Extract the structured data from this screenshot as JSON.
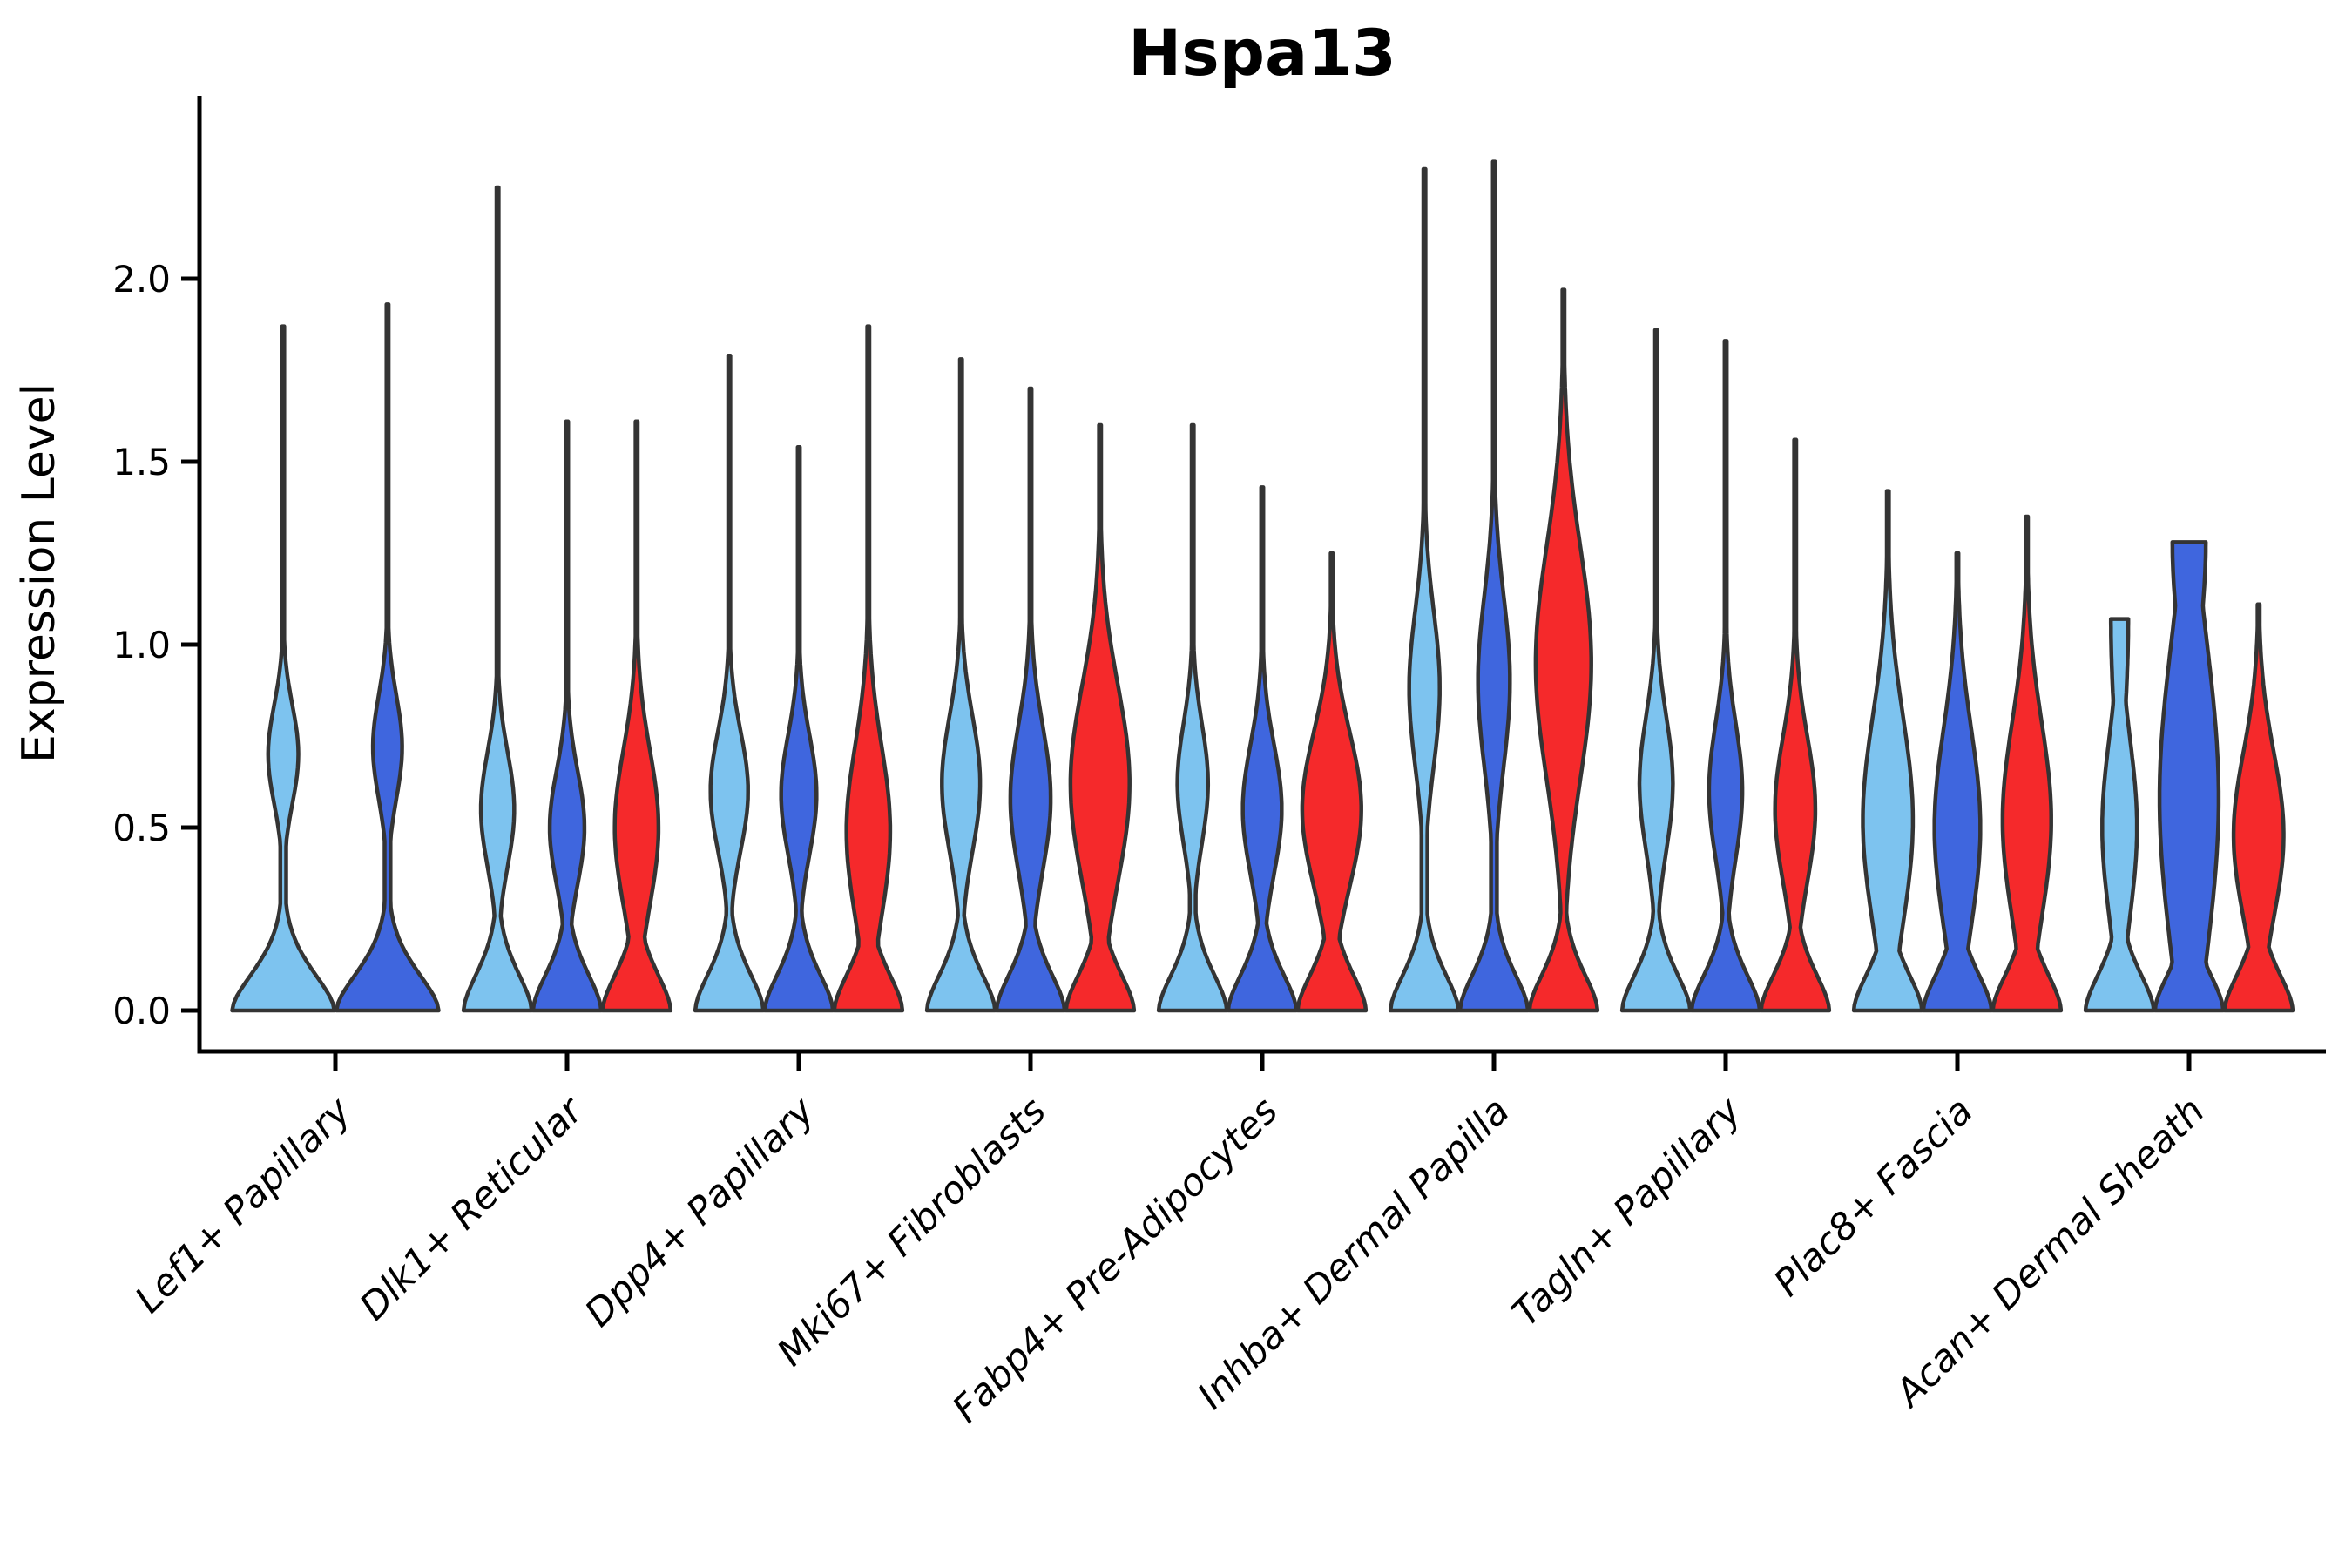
{
  "chart_data": {
    "type": "violin",
    "title": "Hspa13",
    "xlabel": "",
    "ylabel": "Expression Level",
    "yticks": [
      0.0,
      0.5,
      1.0,
      1.5,
      2.0
    ],
    "ylim": [
      -0.11,
      2.5
    ],
    "grid": false,
    "legend_position": "none",
    "colors": {
      "skyblue": "#7DC3EF",
      "royalblue": "#3F66DE",
      "red": "#F5292B"
    },
    "outline_color": "#343434",
    "axis_color": "#000000",
    "background_color": "#FFFFFF",
    "categories": [
      {
        "label": "Lef1+ Papillary",
        "violins": [
          {
            "color": "skyblue",
            "max": 1.87,
            "bulge_center": 0.7,
            "bulge_amp": 0.29,
            "bulge_sigma": 0.19,
            "top_width": 0
          },
          {
            "color": "royalblue",
            "max": 1.93,
            "bulge_center": 0.72,
            "bulge_amp": 0.28,
            "bulge_sigma": 0.2,
            "top_width": 0
          }
        ]
      },
      {
        "label": "Dlk1+ Reticular",
        "violins": [
          {
            "color": "skyblue",
            "max": 2.25,
            "bulge_center": 0.55,
            "bulge_amp": 0.48,
            "bulge_sigma": 0.22,
            "top_width": 0
          },
          {
            "color": "royalblue",
            "max": 1.61,
            "bulge_center": 0.5,
            "bulge_amp": 0.5,
            "bulge_sigma": 0.22,
            "top_width": 0
          },
          {
            "color": "red",
            "max": 1.61,
            "bulge_center": 0.5,
            "bulge_amp": 0.63,
            "bulge_sigma": 0.3,
            "top_width": 0
          }
        ]
      },
      {
        "label": "Dpp4+ Papillary",
        "violins": [
          {
            "color": "skyblue",
            "max": 1.79,
            "bulge_center": 0.6,
            "bulge_amp": 0.54,
            "bulge_sigma": 0.23,
            "top_width": 0
          },
          {
            "color": "royalblue",
            "max": 1.54,
            "bulge_center": 0.59,
            "bulge_amp": 0.51,
            "bulge_sigma": 0.23,
            "top_width": 0
          },
          {
            "color": "red",
            "max": 1.87,
            "bulge_center": 0.49,
            "bulge_amp": 0.63,
            "bulge_sigma": 0.33,
            "top_width": 0
          }
        ]
      },
      {
        "label": "Mki67+ Fibroblasts",
        "violins": [
          {
            "color": "skyblue",
            "max": 1.78,
            "bulge_center": 0.62,
            "bulge_amp": 0.55,
            "bulge_sigma": 0.26,
            "top_width": 0
          },
          {
            "color": "royalblue",
            "max": 1.7,
            "bulge_center": 0.58,
            "bulge_amp": 0.58,
            "bulge_sigma": 0.28,
            "top_width": 0
          },
          {
            "color": "red",
            "max": 1.6,
            "bulge_center": 0.62,
            "bulge_amp": 0.85,
            "bulge_sigma": 0.38,
            "top_width": 0
          }
        ]
      },
      {
        "label": "Fabp4+ Pre-Adipocytes",
        "violins": [
          {
            "color": "skyblue",
            "max": 1.6,
            "bulge_center": 0.62,
            "bulge_amp": 0.44,
            "bulge_sigma": 0.23,
            "top_width": 0
          },
          {
            "color": "royalblue",
            "max": 1.43,
            "bulge_center": 0.55,
            "bulge_amp": 0.56,
            "bulge_sigma": 0.25,
            "top_width": 0
          },
          {
            "color": "red",
            "max": 1.25,
            "bulge_center": 0.55,
            "bulge_amp": 0.85,
            "bulge_sigma": 0.3,
            "top_width": 0
          }
        ]
      },
      {
        "label": "Inhba+ Dermal Papilla",
        "violins": [
          {
            "color": "skyblue",
            "max": 2.3,
            "bulge_center": 0.88,
            "bulge_amp": 0.44,
            "bulge_sigma": 0.3,
            "top_width": 0
          },
          {
            "color": "royalblue",
            "max": 2.32,
            "bulge_center": 0.9,
            "bulge_amp": 0.46,
            "bulge_sigma": 0.33,
            "top_width": 0
          },
          {
            "color": "red",
            "max": 1.97,
            "bulge_center": 0.95,
            "bulge_amp": 0.8,
            "bulge_sigma": 0.45,
            "top_width": 0
          }
        ]
      },
      {
        "label": "Tagln+ Papillary",
        "violins": [
          {
            "color": "skyblue",
            "max": 1.86,
            "bulge_center": 0.62,
            "bulge_amp": 0.48,
            "bulge_sigma": 0.26,
            "top_width": 0
          },
          {
            "color": "royalblue",
            "max": 1.83,
            "bulge_center": 0.6,
            "bulge_amp": 0.48,
            "bulge_sigma": 0.26,
            "top_width": 0
          },
          {
            "color": "red",
            "max": 1.56,
            "bulge_center": 0.55,
            "bulge_amp": 0.58,
            "bulge_sigma": 0.28,
            "top_width": 0
          }
        ]
      },
      {
        "label": "Plac8+ Fascia",
        "violins": [
          {
            "color": "skyblue",
            "max": 1.42,
            "bulge_center": 0.52,
            "bulge_amp": 0.72,
            "bulge_sigma": 0.4,
            "top_width": 0
          },
          {
            "color": "royalblue",
            "max": 1.25,
            "bulge_center": 0.5,
            "bulge_amp": 0.66,
            "bulge_sigma": 0.38,
            "top_width": 0
          },
          {
            "color": "red",
            "max": 1.35,
            "bulge_center": 0.52,
            "bulge_amp": 0.7,
            "bulge_sigma": 0.38,
            "top_width": 0
          }
        ]
      },
      {
        "label": "Acan+ Dermal Sheath",
        "violins": [
          {
            "color": "skyblue",
            "max": 1.07,
            "bulge_center": 0.5,
            "bulge_amp": 0.5,
            "bulge_sigma": 0.34,
            "top_width": 0.25
          },
          {
            "color": "royalblue",
            "max": 1.28,
            "bulge_center": 0.58,
            "bulge_amp": 0.85,
            "bulge_sigma": 0.6,
            "top_width": 0.48
          },
          {
            "color": "red",
            "max": 1.11,
            "bulge_center": 0.48,
            "bulge_amp": 0.72,
            "bulge_sigma": 0.32,
            "top_width": 0.05
          }
        ]
      }
    ]
  }
}
